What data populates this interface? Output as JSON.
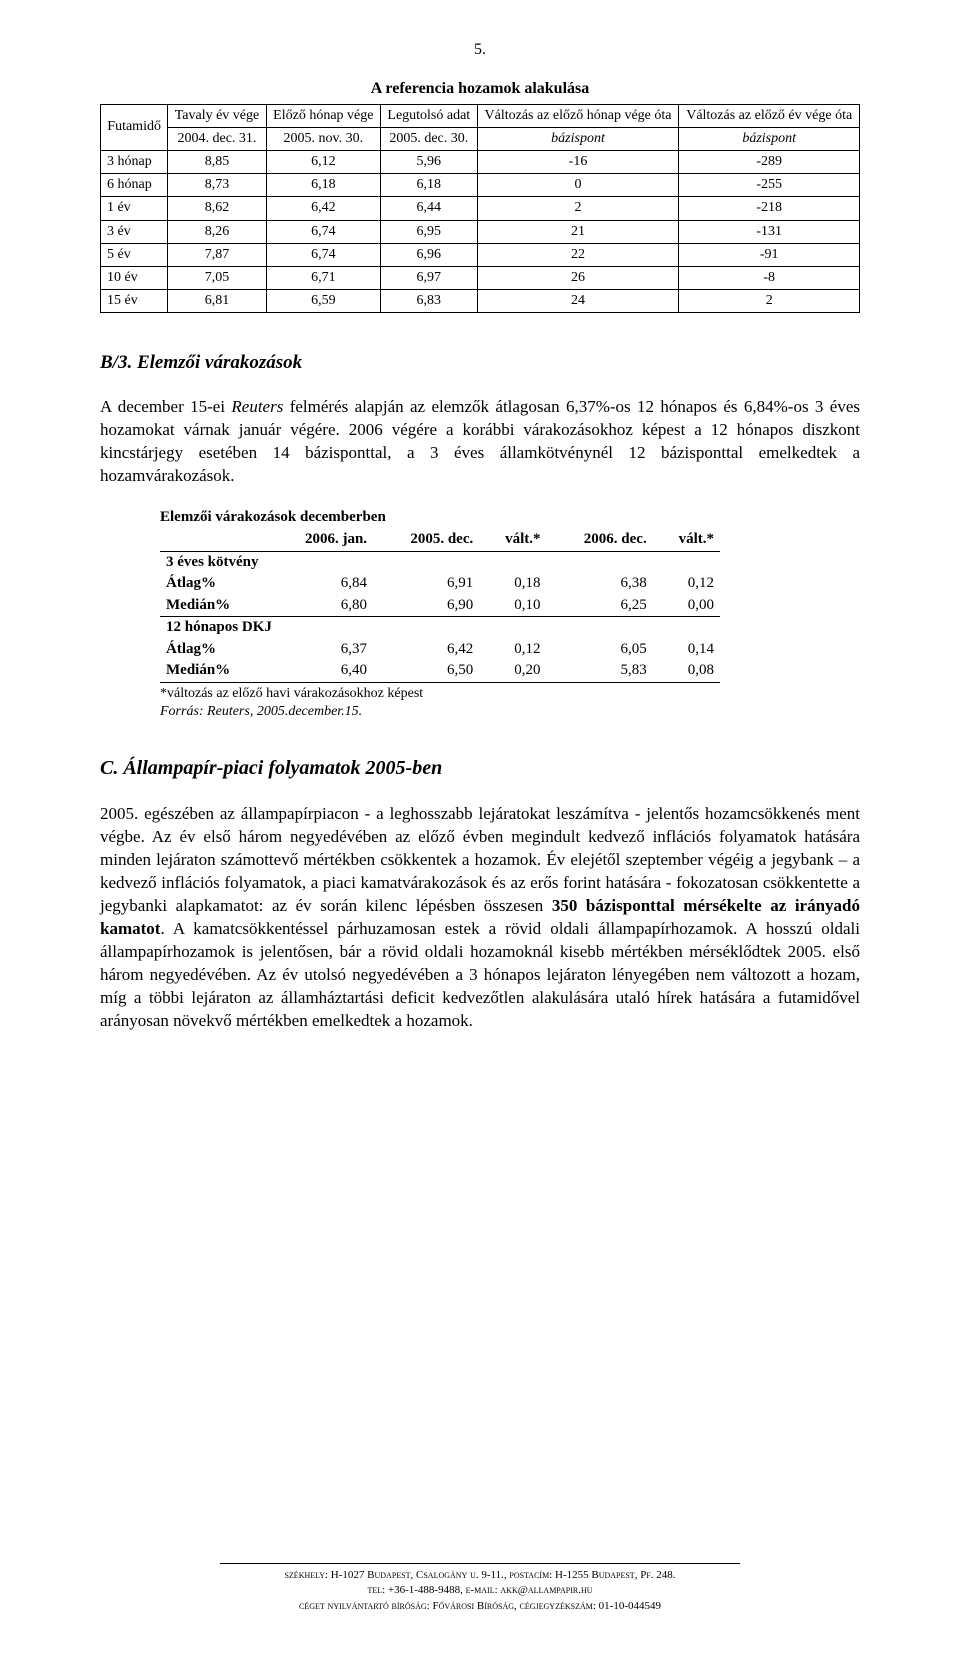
{
  "page_number": "5.",
  "table1": {
    "title": "A referencia hozamok alakulása",
    "header1": [
      "Futamidő",
      "Tavaly év vége",
      "Előző hónap vége",
      "Legutolsó adat",
      "Változás az előző hónap vége óta",
      "Változás az előző év vége óta"
    ],
    "header2": [
      "",
      "2004. dec. 31.",
      "2005. nov. 30.",
      "2005. dec. 30.",
      "bázispont",
      "bázispont"
    ],
    "rows": [
      [
        "3 hónap",
        "8,85",
        "6,12",
        "5,96",
        "-16",
        "-289"
      ],
      [
        "6 hónap",
        "8,73",
        "6,18",
        "6,18",
        "0",
        "-255"
      ],
      [
        "1 év",
        "8,62",
        "6,42",
        "6,44",
        "2",
        "-218"
      ],
      [
        "3 év",
        "8,26",
        "6,74",
        "6,95",
        "21",
        "-131"
      ],
      [
        "5 év",
        "7,87",
        "6,74",
        "6,96",
        "22",
        "-91"
      ],
      [
        "10 év",
        "7,05",
        "6,71",
        "6,97",
        "26",
        "-8"
      ],
      [
        "15 év",
        "6,81",
        "6,59",
        "6,83",
        "24",
        "2"
      ]
    ]
  },
  "section_b3_heading": "B/3. Elemzői várakozások",
  "para_b3_prefix": "A december 15-ei ",
  "para_b3_italic": "Reuters",
  "para_b3_rest": " felmérés alapján az elemzők átlagosan 6,37%-os 12 hónapos és 6,84%-os 3 éves hozamokat várnak január végére. 2006 végére a korábbi várakozásokhoz képest a 12 hónapos diszkont kincstárjegy esetében 14 bázisponttal, a 3 éves államkötvénynél 12 bázisponttal emelkedtek a hozamvárakozások.",
  "table2": {
    "title": "Elemzői várakozások decemberben",
    "head": [
      "",
      "2006. jan.",
      "2005. dec.",
      "vált.*",
      "2006. dec.",
      "vált.*"
    ],
    "block1_label": "3 éves kötvény",
    "block1_rows": [
      [
        "Átlag%",
        "6,84",
        "6,91",
        "0,18",
        "6,38",
        "0,12"
      ],
      [
        "Medián%",
        "6,80",
        "6,90",
        "0,10",
        "6,25",
        "0,00"
      ]
    ],
    "block2_label": "12 hónapos DKJ",
    "block2_rows": [
      [
        "Átlag%",
        "6,37",
        "6,42",
        "0,12",
        "6,05",
        "0,14"
      ],
      [
        "Medián%",
        "6,40",
        "6,50",
        "0,20",
        "5,83",
        "0,08"
      ]
    ],
    "note": "*változás az előző havi várakozásokhoz képest",
    "source": "Forrás: Reuters, 2005.december.15."
  },
  "heading_c": "C. Állampapír-piaci folyamatok 2005-ben",
  "para_c": "2005. egészében az állampapírpiacon - a leghosszabb lejáratokat leszámítva - jelentős hozamcsökkenés ment végbe. Az év első három negyedévében az előző évben megindult kedvező inflációs folyamatok hatására minden lejáraton számottevő mértékben csökkentek a hozamok. Év elejétől szeptember végéig a jegybank – a kedvező inflációs folyamatok, a piaci kamatvárakozások és az erős forint hatására - fokozatosan csökkentette a jegybanki alapkamatot: az év során kilenc lépésben összesen ",
  "para_c_bold": "350 bázisponttal mérsékelte az irányadó kamatot",
  "para_c_after": ". A kamatcsökkentéssel párhuzamosan estek a rövid oldali állampapírhozamok. A hosszú oldali állampapírhozamok is jelentősen, bár a rövid oldali hozamoknál kisebb mértékben mérséklődtek 2005. első három negyedévében. Az év utolsó negyedévében a 3 hónapos lejáraton lényegében nem változott a hozam, míg a többi lejáraton az államháztartási deficit kedvezőtlen alakulására utaló hírek hatására a futamidővel arányosan növekvő mértékben emelkedtek a hozamok.",
  "footer": {
    "line1a": "székhely: H-1027 Budapest, Csalogány u. 9-11., ",
    "line1b": "postacím: H-1255 Budapest, Pf. 248.",
    "line2a": "tel: +36-1-488-9488, ",
    "line2b": "e-mail: akk@allampapir.hu",
    "line3a": "céget nyilvántartó bíróság: Fővárosi Bíróság, ",
    "line3b": "cégjegyzékszám: 01-10-044549"
  }
}
